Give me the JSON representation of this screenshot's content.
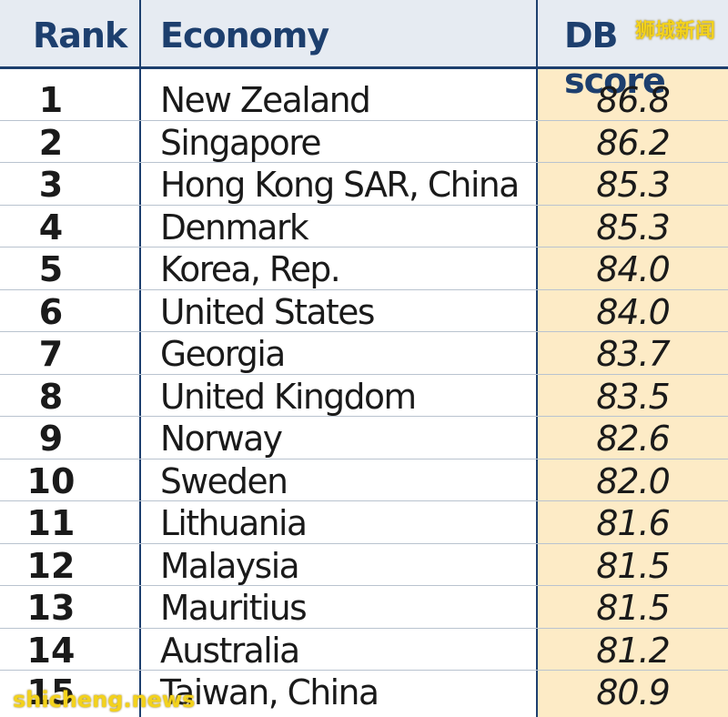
{
  "header": {
    "rank": "Rank",
    "economy": "Economy",
    "score": "DB score"
  },
  "rows": [
    {
      "rank": "1",
      "economy": "New Zealand",
      "score": "86.8"
    },
    {
      "rank": "2",
      "economy": "Singapore",
      "score": "86.2"
    },
    {
      "rank": "3",
      "economy": "Hong Kong SAR, China",
      "score": "85.3"
    },
    {
      "rank": "4",
      "economy": "Denmark",
      "score": "85.3"
    },
    {
      "rank": "5",
      "economy": "Korea, Rep.",
      "score": "84.0"
    },
    {
      "rank": "6",
      "economy": "United States",
      "score": "84.0"
    },
    {
      "rank": "7",
      "economy": "Georgia",
      "score": "83.7"
    },
    {
      "rank": "8",
      "economy": "United Kingdom",
      "score": "83.5"
    },
    {
      "rank": "9",
      "economy": "Norway",
      "score": "82.6"
    },
    {
      "rank": "10",
      "economy": "Sweden",
      "score": "82.0"
    },
    {
      "rank": "11",
      "economy": "Lithuania",
      "score": "81.6"
    },
    {
      "rank": "12",
      "economy": "Malaysia",
      "score": "81.5"
    },
    {
      "rank": "13",
      "economy": "Mauritius",
      "score": "81.5"
    },
    {
      "rank": "14",
      "economy": "Australia",
      "score": "81.2"
    },
    {
      "rank": "15",
      "economy": "Taiwan, China",
      "score": "80.9"
    }
  ],
  "watermarks": {
    "top": "狮城新闻",
    "bottom": "shicheng.news"
  },
  "colors": {
    "header_bg": "#e6ebf2",
    "header_text": "#1d3f6e",
    "score_column_bg": "#fdebc6",
    "watermark": "#f3d21c"
  }
}
